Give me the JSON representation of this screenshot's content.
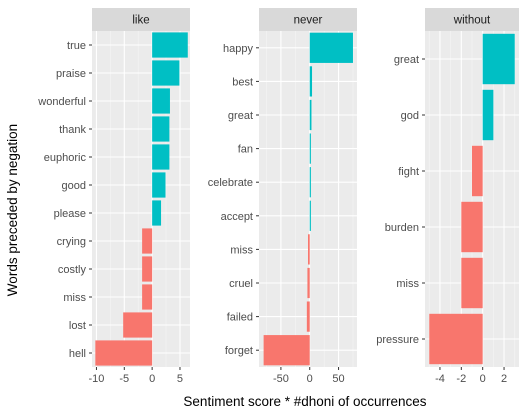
{
  "chart_data": {
    "type": "bar",
    "orientation": "horizontal",
    "faceted": true,
    "xlabel": "Sentiment score * #dhoni of occurrences",
    "ylabel": "Words preceded by negation",
    "colors": {
      "positive": "#00bfc4",
      "negative": "#f8766d"
    },
    "grid": true,
    "legend": "none",
    "panels": [
      {
        "title": "like",
        "xlim": [
          -10.8,
          6.8
        ],
        "xticks": [
          -10,
          -5,
          0,
          5
        ],
        "categories": [
          "true",
          "praise",
          "wonderful",
          "thank",
          "euphoric",
          "good",
          "please",
          "crying",
          "costly",
          "miss",
          "lost",
          "hell"
        ],
        "values": [
          6.4,
          4.9,
          3.2,
          3.1,
          3.1,
          2.4,
          1.6,
          -1.8,
          -1.8,
          -1.8,
          -5.2,
          -10.2
        ]
      },
      {
        "title": "never",
        "xlim": [
          -88,
          82
        ],
        "xticks": [
          -50,
          0,
          50
        ],
        "categories": [
          "happy",
          "best",
          "great",
          "fan",
          "celebrate",
          "accept",
          "miss",
          "cruel",
          "failed",
          "forget"
        ],
        "values": [
          75,
          4,
          3,
          2,
          2,
          2,
          -3,
          -4,
          -5,
          -80
        ]
      },
      {
        "title": "without",
        "xlim": [
          -5.4,
          3.4
        ],
        "xticks": [
          -4,
          -2,
          0,
          2
        ],
        "categories": [
          "great",
          "god",
          "fight",
          "burden",
          "miss",
          "pressure"
        ],
        "values": [
          3,
          1,
          -1,
          -2,
          -2,
          -5
        ]
      }
    ]
  }
}
